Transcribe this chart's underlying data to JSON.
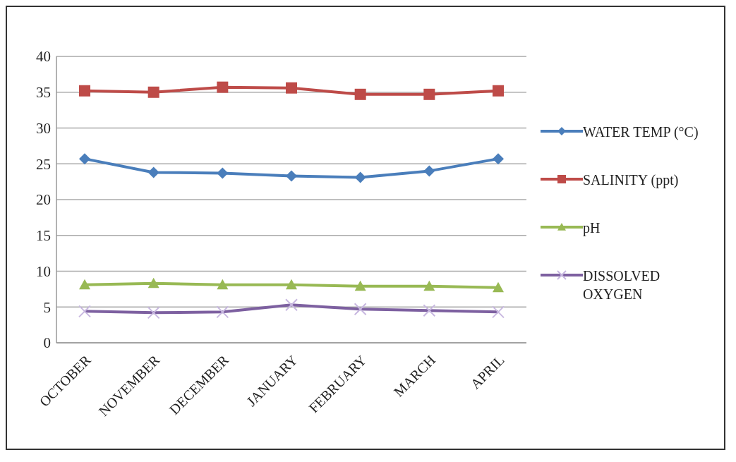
{
  "chart_data": {
    "type": "line",
    "categories": [
      "OCTOBER",
      "NOVEMBER",
      "DECEMBER",
      "JANUARY",
      "FEBRUARY",
      "MARCH",
      "APRIL"
    ],
    "series": [
      {
        "name": "WATER TEMP (°C)",
        "color": "#4a7ebb",
        "marker": "diamond",
        "values": [
          25.7,
          23.8,
          23.7,
          23.3,
          23.1,
          24.0,
          25.7
        ]
      },
      {
        "name": "SALINITY (ppt)",
        "color": "#be4b48",
        "marker": "square",
        "values": [
          35.2,
          35.0,
          35.7,
          35.6,
          34.7,
          34.7,
          35.2
        ]
      },
      {
        "name": "pH",
        "color": "#98b954",
        "marker": "triangle",
        "values": [
          8.1,
          8.3,
          8.1,
          8.1,
          7.9,
          7.9,
          7.7
        ]
      },
      {
        "name": "DISSOLVED OXYGEN",
        "color": "#7d60a0",
        "marker": "cross",
        "values": [
          4.4,
          4.2,
          4.3,
          5.3,
          4.7,
          4.5,
          4.3
        ]
      }
    ],
    "ylim": [
      0,
      40
    ],
    "yticks": [
      0,
      5,
      10,
      15,
      20,
      25,
      30,
      35,
      40
    ],
    "grid": "y",
    "legend": "right"
  }
}
